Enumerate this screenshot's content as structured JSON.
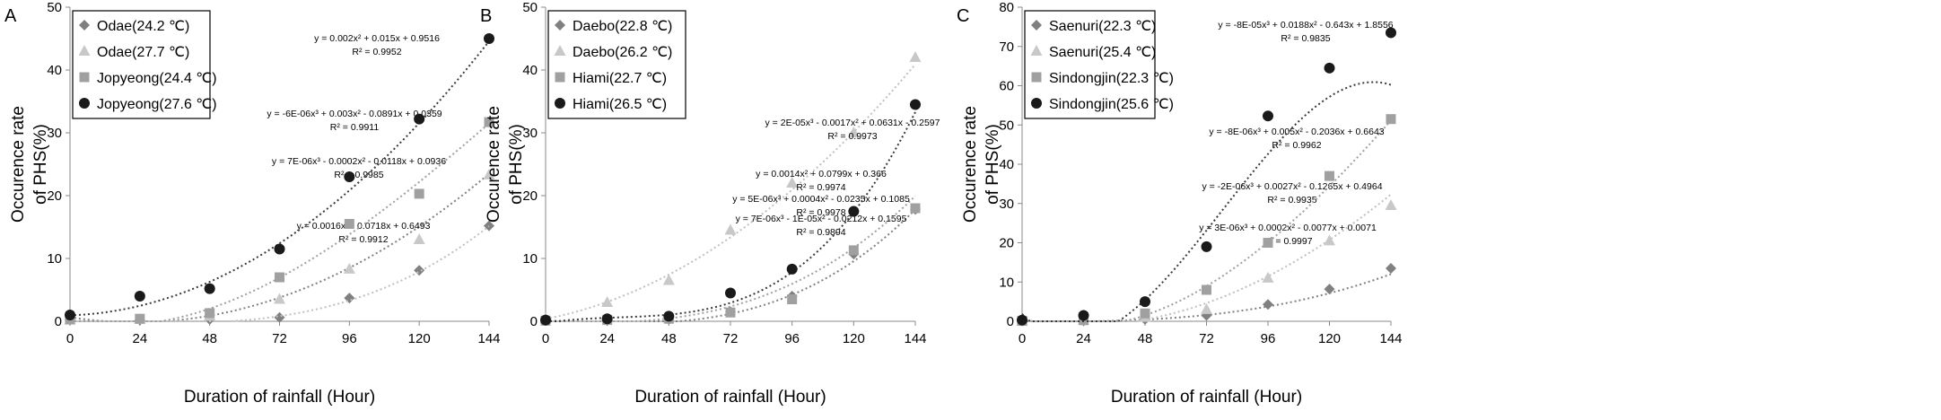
{
  "chart_data": [
    {
      "type": "scatter",
      "panel_label": "A",
      "xlabel": "Duration of rainfall (Hour)",
      "ylabel_lines": [
        "Occurence rate",
        "of PHS(%)"
      ],
      "xlim": [
        0,
        144
      ],
      "ylim": [
        0,
        50
      ],
      "xticks": [
        0,
        24,
        48,
        72,
        96,
        120,
        144
      ],
      "yticks": [
        0,
        10,
        20,
        30,
        40,
        50
      ],
      "grid": false,
      "legend_position": "top-left",
      "series": [
        {
          "name": "Odae(24.2 ℃)",
          "marker": "diamond",
          "color": "#808080",
          "x": [
            0,
            24,
            48,
            72,
            96,
            120,
            144
          ],
          "y": [
            0.2,
            0.2,
            0.3,
            0.6,
            3.7,
            8.1,
            15.2
          ],
          "fit": [
            0,
            0.0016,
            -0.0718,
            0.6493
          ],
          "equation": "y = 0.0016x² - 0.0718x + 0.6493",
          "r2": "R² = 0.9912"
        },
        {
          "name": "Odae(27.7 ℃)",
          "marker": "triangle",
          "color": "#c8c8c8",
          "x": [
            0,
            24,
            48,
            72,
            96,
            120,
            144
          ],
          "y": [
            0.2,
            0.3,
            0.8,
            3.5,
            8.3,
            13.0,
            23.3
          ],
          "fit": [
            7e-06,
            -0.0002,
            -0.0118,
            0.0936
          ],
          "equation": "y = 7E-06x³ - 0.0002x² - 0.0118x + 0.0936",
          "r2": "R² = 0.9985"
        },
        {
          "name": "Jopyeong(24.4 ℃)",
          "marker": "square",
          "color": "#a0a0a0",
          "x": [
            0,
            24,
            48,
            72,
            96,
            120,
            144
          ],
          "y": [
            0.3,
            0.4,
            1.3,
            7.0,
            15.5,
            20.3,
            31.7
          ],
          "fit": [
            -6e-06,
            0.003,
            -0.0891,
            0.0359
          ],
          "equation": "y = -6E-06x³ + 0.003x² - 0.0891x + 0.0359",
          "r2": "R² = 0.9911"
        },
        {
          "name": "Jopyeong(27.6 ℃)",
          "marker": "circle",
          "color": "#1a1a1a",
          "x": [
            0,
            24,
            48,
            72,
            96,
            120,
            144
          ],
          "y": [
            1.0,
            4.0,
            5.2,
            11.5,
            23.0,
            32.2,
            45.0
          ],
          "fit": [
            0,
            0.002,
            0.015,
            0.9516
          ],
          "equation": "y = 0.002x² + 0.015x + 0.9516",
          "r2": "R² = 0.9952"
        }
      ]
    },
    {
      "type": "scatter",
      "panel_label": "B",
      "xlabel": "Duration of rainfall (Hour)",
      "ylabel_lines": [
        "Occurence rate",
        "of PHS(%)"
      ],
      "xlim": [
        0,
        144
      ],
      "ylim": [
        0,
        50
      ],
      "xticks": [
        0,
        24,
        48,
        72,
        96,
        120,
        144
      ],
      "yticks": [
        0,
        10,
        20,
        30,
        40,
        50
      ],
      "grid": false,
      "legend_position": "top-left",
      "series": [
        {
          "name": "Daebo(22.8 ℃)",
          "marker": "diamond",
          "color": "#808080",
          "x": [
            0,
            24,
            48,
            72,
            96,
            120,
            144
          ],
          "y": [
            0.1,
            0.1,
            0.3,
            1.5,
            4.0,
            10.7,
            17.8
          ],
          "fit": [
            7e-06,
            -1e-05,
            -0.0212,
            0.1595
          ],
          "equation": "y = 7E-06x³ - 1E-05x² - 0.0212x + 0.1595",
          "r2": "R² = 0.9894"
        },
        {
          "name": "Daebo(26.2 ℃)",
          "marker": "triangle",
          "color": "#c8c8c8",
          "x": [
            0,
            24,
            48,
            72,
            96,
            120,
            144
          ],
          "y": [
            0.4,
            3.0,
            6.5,
            14.5,
            22.0,
            30.0,
            42.0
          ],
          "fit": [
            0,
            0.0014,
            0.0799,
            0.366
          ],
          "equation": "y = 0.0014x² + 0.0799x + 0.366",
          "r2": "R² = 0.9974"
        },
        {
          "name": "Hiami(22.7 ℃)",
          "marker": "square",
          "color": "#a0a0a0",
          "x": [
            0,
            24,
            48,
            72,
            96,
            120,
            144
          ],
          "y": [
            0.1,
            0.2,
            0.4,
            1.4,
            3.5,
            11.3,
            18.0
          ],
          "fit": [
            5e-06,
            0.0004,
            -0.0235,
            0.1085
          ],
          "equation": "y = 5E-06x³ + 0.0004x² - 0.0235x + 0.1085",
          "r2": "R² = 0.9978"
        },
        {
          "name": "Hiami(26.5 ℃)",
          "marker": "circle",
          "color": "#1a1a1a",
          "x": [
            0,
            24,
            48,
            72,
            96,
            120,
            144
          ],
          "y": [
            0.2,
            0.4,
            0.8,
            4.5,
            8.3,
            17.5,
            34.5
          ],
          "fit": [
            2e-05,
            -0.0017,
            0.0631,
            -0.2597
          ],
          "equation": "y = 2E-05x³ - 0.0017x² + 0.0631x - 0.2597",
          "r2": "R² = 0.9973"
        }
      ]
    },
    {
      "type": "scatter",
      "panel_label": "C",
      "xlabel": "Duration of rainfall (Hour)",
      "ylabel_lines": [
        "Occurence rate",
        "of PHS(%)"
      ],
      "xlim": [
        0,
        144
      ],
      "ylim": [
        0,
        80
      ],
      "xticks": [
        0,
        24,
        48,
        72,
        96,
        120,
        144
      ],
      "yticks": [
        0,
        10,
        20,
        30,
        40,
        50,
        60,
        70,
        80
      ],
      "grid": false,
      "legend_position": "top-left",
      "series": [
        {
          "name": "Saenuri(22.3 ℃)",
          "marker": "diamond",
          "color": "#808080",
          "x": [
            0,
            24,
            48,
            72,
            96,
            120,
            144
          ],
          "y": [
            0.1,
            0.1,
            0.5,
            1.5,
            4.3,
            8.2,
            13.5
          ],
          "fit": [
            3e-06,
            0.0002,
            -0.0077,
            0.0071
          ],
          "equation": "y = 3E-06x³ + 0.0002x² - 0.0077x + 0.0071",
          "r2": "R² = 0.9997"
        },
        {
          "name": "Saenuri(25.4 ℃)",
          "marker": "triangle",
          "color": "#c8c8c8",
          "x": [
            0,
            24,
            48,
            72,
            96,
            120,
            144
          ],
          "y": [
            0.1,
            0.2,
            1.0,
            3.0,
            11.0,
            20.5,
            29.5
          ],
          "fit": [
            -2e-06,
            0.0027,
            -0.1265,
            0.4964
          ],
          "equation": "y = -2E-06x³ + 0.0027x² - 0.1265x + 0.4964",
          "r2": "R² = 0.9935"
        },
        {
          "name": "Sindongjin(22.3 ℃)",
          "marker": "square",
          "color": "#a0a0a0",
          "x": [
            0,
            24,
            48,
            72,
            96,
            120,
            144
          ],
          "y": [
            0.1,
            0.3,
            2.0,
            8.0,
            20.0,
            37.0,
            51.5
          ],
          "fit": [
            -8e-06,
            0.005,
            -0.2036,
            0.6643
          ],
          "equation": "y = -8E-06x³ + 0.005x² - 0.2036x + 0.6643",
          "r2": "R² = 0.9962"
        },
        {
          "name": "Sindongjin(25.6 ℃)",
          "marker": "circle",
          "color": "#1a1a1a",
          "x": [
            0,
            24,
            48,
            72,
            96,
            120,
            144
          ],
          "y": [
            0.3,
            1.5,
            5.0,
            19.0,
            52.3,
            64.5,
            73.5
          ],
          "fit": [
            -8e-05,
            0.0188,
            -0.643,
            1.8556
          ],
          "equation": "y = -8E-05x³ + 0.0188x² - 0.643x + 1.8556",
          "r2": "R² = 0.9835"
        }
      ]
    }
  ]
}
